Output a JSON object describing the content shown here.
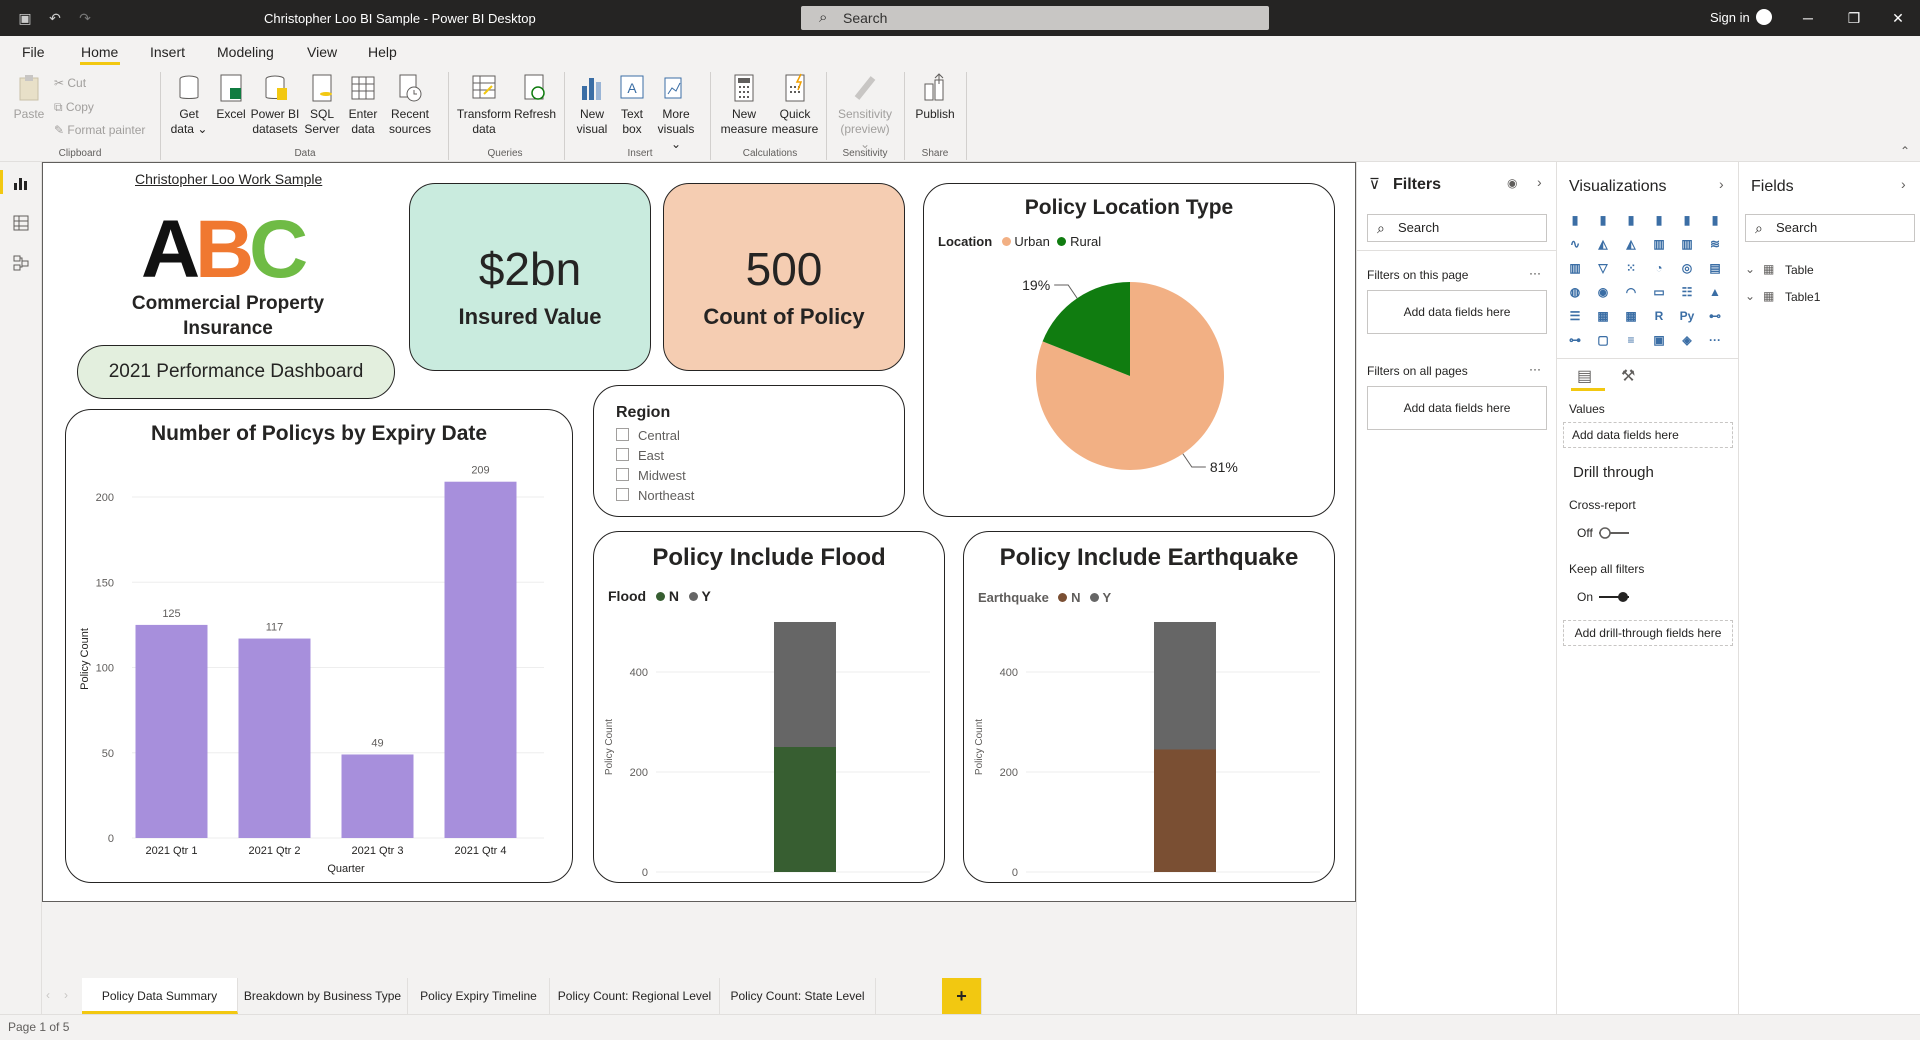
{
  "window": {
    "title": "Christopher Loo BI Sample - Power BI Desktop",
    "search_placeholder": "Search",
    "sign_in": "Sign in"
  },
  "menu": [
    "File",
    "Home",
    "Insert",
    "Modeling",
    "View",
    "Help"
  ],
  "ribbon": {
    "clipboard": {
      "paste": "Paste",
      "cut": "Cut",
      "copy": "Copy",
      "format_painter": "Format painter",
      "group": "Clipboard"
    },
    "data": {
      "get_data": "Get\ndata",
      "excel": "Excel",
      "pbi_datasets": "Power BI\ndatasets",
      "sql": "SQL\nServer",
      "enter": "Enter\ndata",
      "recent": "Recent\nsources",
      "group": "Data"
    },
    "queries": {
      "transform": "Transform\ndata",
      "refresh": "Refresh",
      "group": "Queries"
    },
    "insert": {
      "new_visual": "New\nvisual",
      "text_box": "Text\nbox",
      "more_visuals": "More\nvisuals",
      "group": "Insert"
    },
    "calculations": {
      "new_measure": "New\nmeasure",
      "quick_measure": "Quick\nmeasure",
      "group": "Calculations"
    },
    "sensitivity": {
      "label": "Sensitivity\n(preview)",
      "group": "Sensitivity"
    },
    "share": {
      "publish": "Publish",
      "group": "Share"
    }
  },
  "report": {
    "work_sample_link": "Christopher Loo Work Sample",
    "logo_text": "ABC",
    "company": "Commercial Property Insurance",
    "dashboard_title": "2021 Performance Dashboard",
    "kpi_insured": {
      "value": "$2bn",
      "label": "Insured Value"
    },
    "kpi_count": {
      "value": "500",
      "label": "Count of Policy"
    },
    "region_slicer": {
      "title": "Region",
      "items": [
        "Central",
        "East",
        "Midwest",
        "Northeast"
      ]
    }
  },
  "chart_data": [
    {
      "type": "bar",
      "title": "Number of Policys by Expiry Date",
      "categories": [
        "2021 Qtr 1",
        "2021 Qtr 2",
        "2021 Qtr 3",
        "2021 Qtr 4"
      ],
      "values": [
        125,
        117,
        49,
        209
      ],
      "xlabel": "Quarter",
      "ylabel": "Policy Count",
      "yticks": [
        0,
        50,
        100,
        150,
        200
      ],
      "ylim": [
        0,
        210
      ],
      "color": "#a78fdc"
    },
    {
      "type": "pie",
      "title": "Policy Location Type",
      "legend_title": "Location",
      "series": [
        {
          "name": "Urban",
          "value": 81,
          "label": "81%",
          "color": "#f2b084"
        },
        {
          "name": "Rural",
          "value": 19,
          "label": "19%",
          "color": "#107c10"
        }
      ]
    },
    {
      "type": "bar",
      "title": "Policy Include Flood",
      "legend_title": "Flood",
      "stacked": true,
      "ylabel": "Policy Count",
      "yticks": [
        0,
        200,
        400
      ],
      "ylim": [
        0,
        500
      ],
      "series": [
        {
          "name": "N",
          "value": 250,
          "color": "#375e31"
        },
        {
          "name": "Y",
          "value": 250,
          "color": "#666666"
        }
      ]
    },
    {
      "type": "bar",
      "title": "Policy Include Earthquake",
      "legend_title": "Earthquake",
      "stacked": true,
      "ylabel": "Policy Count",
      "yticks": [
        0,
        200,
        400
      ],
      "ylim": [
        0,
        500
      ],
      "series": [
        {
          "name": "N",
          "value": 245,
          "color": "#7a4f33"
        },
        {
          "name": "Y",
          "value": 255,
          "color": "#666666"
        }
      ]
    }
  ],
  "tabs": [
    "Policy Data Summary",
    "Breakdown by Business Type",
    "Policy Expiry Timeline",
    "Policy Count: Regional Level",
    "Policy Count: State Level"
  ],
  "add_tab": "+",
  "status": "Page 1 of 5",
  "filters": {
    "title": "Filters",
    "search": "Search",
    "on_page": "Filters on this page",
    "on_all": "Filters on all pages",
    "add_fields": "Add data fields here",
    "more": "···"
  },
  "visualizations": {
    "title": "Visualizations",
    "values_label": "Values",
    "add_fields": "Add data fields here",
    "drill_through": "Drill through",
    "cross_report": "Cross-report",
    "cross_state": "Off",
    "keep_filters": "Keep all filters",
    "keep_state": "On",
    "add_drill": "Add drill-through fields here",
    "icons": [
      "stacked-bar",
      "stacked-column",
      "clustered-bar",
      "clustered-column",
      "100-bar",
      "100-column",
      "line",
      "area",
      "stacked-area",
      "line-column",
      "line-clustered",
      "ribbon",
      "waterfall",
      "funnel",
      "scatter",
      "pie",
      "donut",
      "treemap",
      "map",
      "filled-map",
      "gauge",
      "card",
      "multi-row-card",
      "kpi",
      "slicer",
      "table",
      "matrix",
      "r-visual",
      "python",
      "key-influencers",
      "decomposition-tree",
      "qa",
      "smart-narrative",
      "paginated",
      "arcgis",
      "more"
    ]
  },
  "fields": {
    "title": "Fields",
    "search": "Search",
    "tables": [
      "Table",
      "Table1"
    ]
  }
}
